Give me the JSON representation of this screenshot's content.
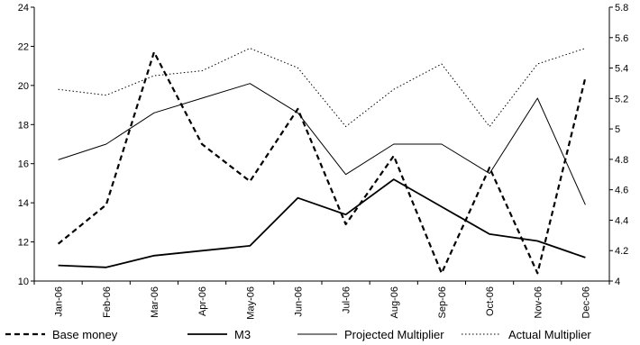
{
  "chart_data": {
    "type": "line",
    "categories": [
      "Jan-06",
      "Feb-06",
      "Mar-06",
      "Apr-06",
      "May-06",
      "Jun-06",
      "Jul-06",
      "Aug-06",
      "Sep-06",
      "Oct-06",
      "Nov-06",
      "Dec-06"
    ],
    "left_axis": {
      "ylim": [
        10,
        24
      ],
      "ticks": [
        10,
        12,
        14,
        16,
        18,
        20,
        22,
        24
      ]
    },
    "right_axis": {
      "ylim": [
        4,
        5.8
      ],
      "ticks": [
        4,
        4.2,
        4.4,
        4.6,
        4.8,
        5,
        5.2,
        5.4,
        5.6,
        5.8
      ]
    },
    "grid": false,
    "legend_position": "bottom",
    "series": [
      {
        "name": "Base money",
        "axis": "left",
        "style": "dashed-bold",
        "values": [
          11.9,
          13.9,
          21.7,
          17.0,
          15.1,
          18.8,
          12.9,
          16.4,
          10.4,
          15.8,
          10.4,
          20.4
        ]
      },
      {
        "name": "M3",
        "axis": "left",
        "style": "solid-bold",
        "values": [
          10.8,
          10.7,
          11.3,
          11.55,
          11.8,
          14.25,
          13.4,
          15.2,
          13.8,
          12.4,
          12.05,
          11.2
        ]
      },
      {
        "name": "Projected Multiplier",
        "axis": "left",
        "style": "solid-thin",
        "values": [
          16.2,
          17.0,
          18.6,
          19.35,
          20.1,
          18.6,
          15.45,
          17.0,
          17.0,
          15.5,
          19.35,
          13.9
        ]
      },
      {
        "name": "Actual Multiplier",
        "axis": "left",
        "style": "dotted",
        "values": [
          19.8,
          19.5,
          20.5,
          20.75,
          21.9,
          20.9,
          17.9,
          19.8,
          21.1,
          17.9,
          21.1,
          21.9
        ]
      }
    ]
  },
  "colors": {
    "line": "#000000",
    "background": "#ffffff"
  }
}
